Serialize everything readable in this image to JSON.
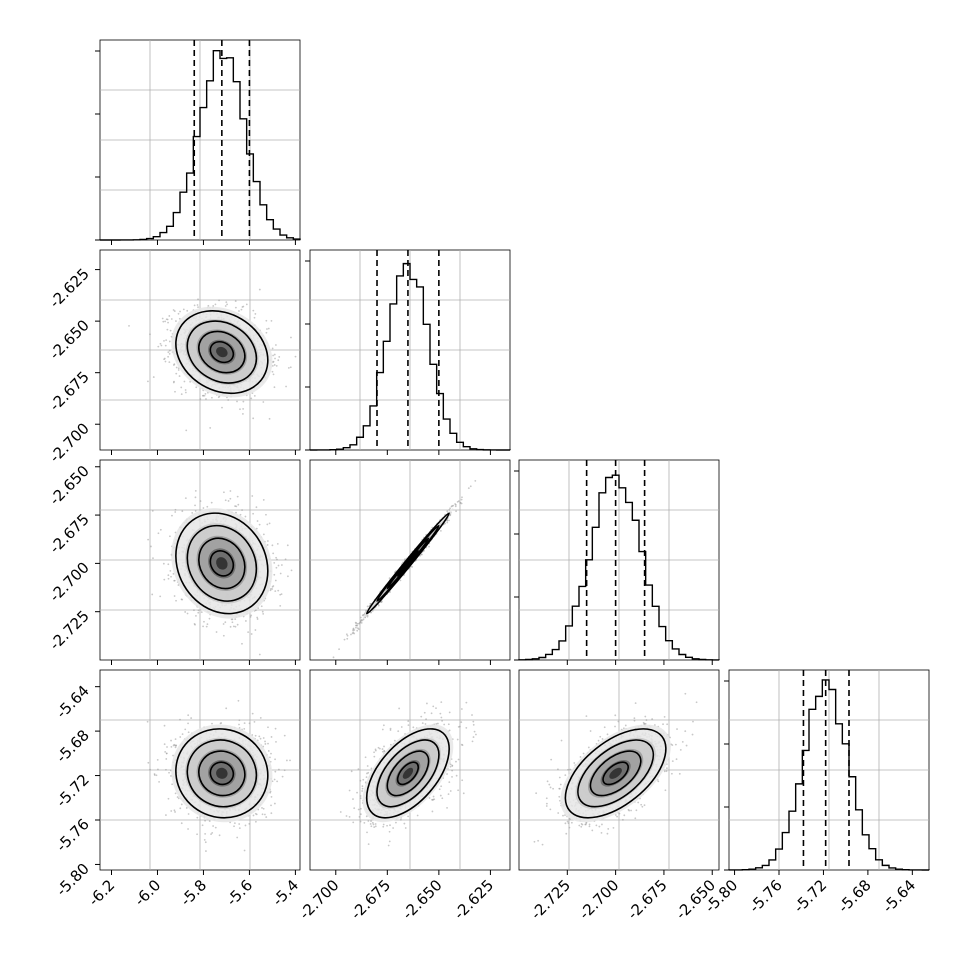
{
  "chart_data": {
    "type": "corner",
    "n_params": 4,
    "x_ticks": [
      [
        "-6.2",
        "-6.0",
        "-5.8",
        "-5.6",
        "-5.4"
      ],
      [
        "-2.700",
        "-2.675",
        "-2.650",
        "-2.625"
      ],
      [
        "-2.725",
        "-2.700",
        "-2.675",
        "-2.650"
      ],
      [
        "-5.80",
        "-5.76",
        "-5.72",
        "-5.68",
        "-5.64"
      ]
    ],
    "y_ticks": {
      "row1": [
        "-2.625",
        "-2.650",
        "-2.675",
        "-2.700"
      ],
      "row2": [
        "-2.650",
        "-2.675",
        "-2.700",
        "-2.725"
      ],
      "row3": [
        "-5.64",
        "-5.68",
        "-5.72",
        "-5.76",
        "-5.80"
      ]
    },
    "ranges": [
      [
        -6.25,
        -5.38
      ],
      [
        -2.7125,
        -2.6155
      ],
      [
        -2.75,
        -2.6465
      ],
      [
        -5.805,
        -5.625
      ]
    ],
    "stats": [
      {
        "q16": -5.84,
        "median": -5.72,
        "q84": -5.6,
        "sigma": 0.1
      },
      {
        "q16": -2.68,
        "median": -2.665,
        "q84": -2.65,
        "sigma": 0.01
      },
      {
        "q16": -2.715,
        "median": -2.7,
        "q84": -2.685,
        "sigma": 0.013
      },
      {
        "q16": -5.738,
        "median": -5.718,
        "q84": -5.697,
        "sigma": 0.02
      }
    ],
    "pairs": [
      {
        "i": 0,
        "j": 1,
        "rho": -0.2
      },
      {
        "i": 0,
        "j": 2,
        "rho": -0.15
      },
      {
        "i": 1,
        "j": 2,
        "rho": 0.995
      },
      {
        "i": 0,
        "j": 3,
        "rho": -0.05
      },
      {
        "i": 1,
        "j": 3,
        "rho": 0.55
      },
      {
        "i": 2,
        "j": 3,
        "rho": 0.55
      }
    ],
    "contour_levels_sigma": [
      0.5,
      1.0,
      1.5,
      2.0
    ],
    "grid": true,
    "colors": {
      "hist": "#000000",
      "contour": "#000000",
      "points": "#9a9a9a",
      "grid": "#b0b0b0"
    }
  }
}
